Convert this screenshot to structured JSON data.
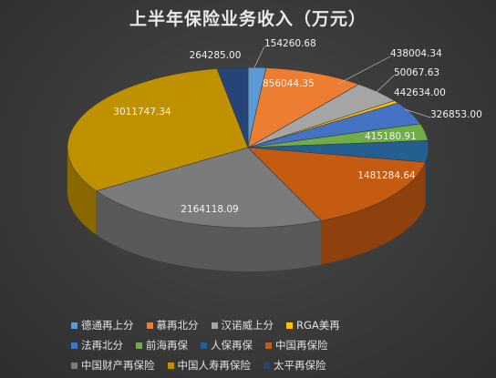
{
  "chart_data": {
    "type": "pie",
    "title": "上半年保险业务收入（万元）",
    "series": [
      {
        "name": "德通再上分",
        "value": 154260.68,
        "label": "154260.68",
        "color": "#5b9bd5"
      },
      {
        "name": "慕再北分",
        "value": 856044.35,
        "label": "856044.35",
        "color": "#ed7d31"
      },
      {
        "name": "汉诺威上分",
        "value": 438004.34,
        "label": "438004.34",
        "color": "#a5a5a5"
      },
      {
        "name": "RGA美再",
        "value": 50067.63,
        "label": "50067.63",
        "color": "#ffc000"
      },
      {
        "name": "法再北分",
        "value": 442634.0,
        "label": "442634.00",
        "color": "#4472c4"
      },
      {
        "name": "前海再保",
        "value": 326853.0,
        "label": "326853.00",
        "color": "#70ad47"
      },
      {
        "name": "人保再保",
        "value": 415180.91,
        "label": "415180.91",
        "color": "#255e91"
      },
      {
        "name": "中国再保险",
        "value": 1481284.64,
        "label": "1481284.64",
        "color": "#c55a11"
      },
      {
        "name": "中国财产再保险",
        "value": 2164118.09,
        "label": "2164118.09",
        "color": "#7b7b7b"
      },
      {
        "name": "中国人寿再保险",
        "value": 3011747.34,
        "label": "3011747.34",
        "color": "#bf9000"
      },
      {
        "name": "太平再保险",
        "value": 264285.0,
        "label": "264285.00",
        "color": "#264478"
      }
    ],
    "legend": {
      "position": "bottom"
    }
  },
  "legend_rows": [
    [
      "德通再上分",
      "慕再北分",
      "汉诺威上分",
      "RGA美再"
    ],
    [
      "法再北分",
      "前海再保",
      "人保再保",
      "中国再保险"
    ],
    [
      "中国财产再保险",
      "中国人寿再保险",
      "太平再保险"
    ]
  ]
}
